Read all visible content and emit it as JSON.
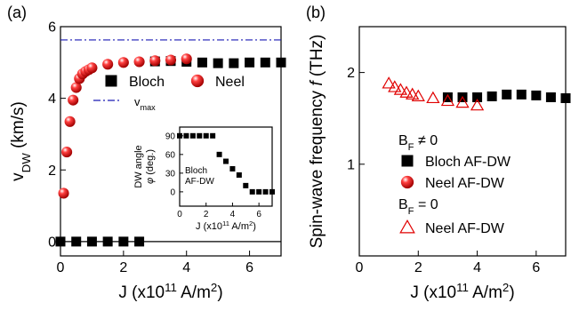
{
  "chart_data": [
    {
      "type": "scatter",
      "panel_label": "(a)",
      "xlabel": [
        "J (x10",
        {
          "sup": "11"
        },
        " A/m",
        {
          "sup": "2"
        },
        ")"
      ],
      "ylabel": [
        [
          "v",
          {
            "sub": "DW"
          },
          " (km/s)"
        ]
      ],
      "xlim": [
        0,
        7
      ],
      "ylim": [
        -0.4,
        6
      ],
      "xticks": [
        0,
        2,
        4,
        6
      ],
      "yticks": [
        0,
        2,
        4,
        6
      ],
      "zero_line": true,
      "series": [
        {
          "name": "Bloch",
          "marker": "square",
          "color": "#000000",
          "x": [
            0,
            0.5,
            1,
            1.5,
            2,
            2.5,
            3,
            3.5,
            4,
            4.5,
            5,
            5.5,
            6,
            6.5,
            7
          ],
          "values": [
            0,
            0,
            0,
            0,
            0,
            0,
            5.03,
            5.04,
            5.02,
            5.0,
            4.98,
            4.98,
            5.0,
            5.0,
            5.0
          ]
        },
        {
          "name": "Neel",
          "marker": "ball",
          "color": "#e00000",
          "x": [
            0.1,
            0.2,
            0.3,
            0.4,
            0.5,
            0.6,
            0.7,
            0.8,
            0.9,
            1.0,
            1.5,
            2,
            2.5,
            3,
            3.5,
            4
          ],
          "values": [
            1.35,
            2.5,
            3.35,
            3.95,
            4.3,
            4.55,
            4.68,
            4.75,
            4.8,
            4.85,
            4.95,
            5.0,
            5.02,
            5.05,
            5.07,
            5.1
          ]
        }
      ],
      "hlines": [
        {
          "value": 5.63,
          "label": [
            "v",
            {
              "sub": "max"
            }
          ],
          "color": "#1a1ab4"
        }
      ]
    },
    {
      "type": "scatter",
      "inset": true,
      "xlabel": [
        "J (x10",
        {
          "sup": "11"
        },
        " A/m",
        {
          "sup": "2"
        },
        ")"
      ],
      "ylabel": [
        [
          "DW angle"
        ],
        [
          {
            "it": "φ"
          },
          " (deg.)"
        ]
      ],
      "xlim": [
        0,
        7
      ],
      "ylim": [
        -23,
        104
      ],
      "xticks": [
        0,
        2,
        4,
        6
      ],
      "yticks": [
        0,
        30,
        60,
        90
      ],
      "annotations": [
        "Bloch",
        "AF-DW"
      ],
      "series": [
        {
          "marker": "square",
          "color": "#000000",
          "x": [
            0,
            0.5,
            1,
            1.5,
            2,
            2.5,
            3,
            3.5,
            4,
            4.5,
            5,
            5.5,
            6,
            6.5,
            7
          ],
          "values": [
            90,
            90,
            90,
            90,
            90,
            90,
            60,
            49,
            37,
            27,
            10,
            0,
            0,
            0,
            0
          ]
        }
      ]
    },
    {
      "type": "scatter",
      "panel_label": "(b)",
      "xlabel": [
        "J (x10",
        {
          "sup": "11"
        },
        " A/m",
        {
          "sup": "2"
        },
        ")"
      ],
      "ylabel": [
        [
          "Spin-wave frequency ",
          {
            "it": "f"
          },
          " (THz)"
        ]
      ],
      "xlim": [
        0,
        7
      ],
      "ylim": [
        0,
        2.5
      ],
      "xticks": [
        0,
        2,
        4,
        6
      ],
      "yticks": [
        1,
        2
      ],
      "legend_headings": [
        [
          "B",
          {
            "sub": "F"
          },
          " ≠ 0"
        ],
        [
          "B",
          {
            "sub": "F"
          },
          " = 0"
        ]
      ],
      "series": [
        {
          "name": "Bloch AF-DW",
          "marker": "square",
          "color": "#000000",
          "x": [
            3,
            3.5,
            4,
            4.5,
            5,
            5.5,
            6,
            6.5,
            7
          ],
          "values": [
            1.73,
            1.73,
            1.73,
            1.74,
            1.76,
            1.76,
            1.75,
            1.73,
            1.72
          ]
        },
        {
          "name": "Neel AF-DW",
          "marker": "ball",
          "color": "#e00000",
          "x": [],
          "values": []
        },
        {
          "name": "Neel AF-DW",
          "marker": "triangle",
          "color": "#e00000",
          "x": [
            1,
            1.2,
            1.4,
            1.6,
            1.8,
            2,
            2.5,
            3,
            3.5,
            4
          ],
          "values": [
            1.88,
            1.84,
            1.81,
            1.78,
            1.76,
            1.74,
            1.72,
            1.69,
            1.67,
            1.64
          ]
        }
      ]
    }
  ]
}
